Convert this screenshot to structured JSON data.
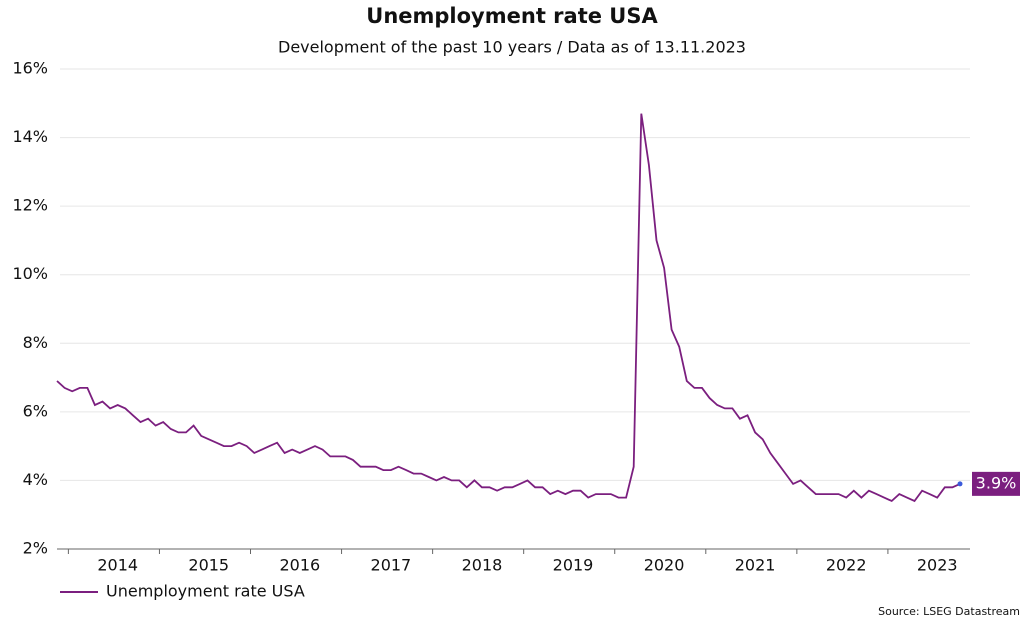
{
  "chart_data": {
    "type": "line",
    "title": "Unemployment rate USA",
    "subtitle": "Development of the past 10 years / Data as of 13.11.2023",
    "source": "Source: LSEG Datastream",
    "categories": [
      null,
      null,
      null,
      null,
      null,
      null,
      null,
      null,
      "2014",
      null,
      null,
      null,
      null,
      null,
      null,
      null,
      null,
      null,
      null,
      null,
      "2015",
      null,
      null,
      null,
      null,
      null,
      null,
      null,
      null,
      null,
      null,
      null,
      "2016",
      null,
      null,
      null,
      null,
      null,
      null,
      null,
      null,
      null,
      null,
      null,
      "2017",
      null,
      null,
      null,
      null,
      null,
      null,
      null,
      null,
      null,
      null,
      null,
      "2018",
      null,
      null,
      null,
      null,
      null,
      null,
      null,
      null,
      null,
      null,
      null,
      "2019",
      null,
      null,
      null,
      null,
      null,
      null,
      null,
      null,
      null,
      null,
      null,
      "2020",
      null,
      null,
      null,
      null,
      null,
      null,
      null,
      null,
      null,
      null,
      null,
      "2021",
      null,
      null,
      null,
      null,
      null,
      null,
      null,
      null,
      null,
      null,
      null,
      "2022",
      null,
      null,
      null,
      null,
      null,
      null,
      null,
      null,
      null,
      null,
      null,
      "2023",
      null,
      null,
      null
    ],
    "series": [
      {
        "name": "Unemployment rate USA",
        "color": "#7b1f7f",
        "values": [
          6.9,
          6.7,
          6.6,
          6.7,
          6.7,
          6.2,
          6.3,
          6.1,
          6.2,
          6.1,
          5.9,
          5.7,
          5.8,
          5.6,
          5.7,
          5.5,
          5.4,
          5.4,
          5.6,
          5.3,
          5.2,
          5.1,
          5.0,
          5.0,
          5.1,
          5.0,
          4.8,
          4.9,
          5.0,
          5.1,
          4.8,
          4.9,
          4.8,
          4.9,
          5.0,
          4.9,
          4.7,
          4.7,
          4.7,
          4.6,
          4.4,
          4.4,
          4.4,
          4.3,
          4.3,
          4.4,
          4.3,
          4.2,
          4.2,
          4.1,
          4.0,
          4.1,
          4.0,
          4.0,
          3.8,
          4.0,
          3.8,
          3.8,
          3.7,
          3.8,
          3.8,
          3.9,
          4.0,
          3.8,
          3.8,
          3.6,
          3.7,
          3.6,
          3.7,
          3.7,
          3.5,
          3.6,
          3.6,
          3.6,
          3.5,
          3.5,
          4.4,
          14.7,
          13.2,
          11.0,
          10.2,
          8.4,
          7.9,
          6.9,
          6.7,
          6.7,
          6.4,
          6.2,
          6.1,
          6.1,
          5.8,
          5.9,
          5.4,
          5.2,
          4.8,
          4.5,
          4.2,
          3.9,
          4.0,
          3.8,
          3.6,
          3.6,
          3.6,
          3.6,
          3.5,
          3.7,
          3.5,
          3.7,
          3.6,
          3.5,
          3.4,
          3.6,
          3.5,
          3.4,
          3.7,
          3.6,
          3.5,
          3.8,
          3.8,
          3.9
        ],
        "value_labels": [
          null,
          null,
          null,
          null,
          null,
          null,
          null,
          null,
          null,
          null,
          null,
          null,
          null,
          null,
          null,
          null,
          null,
          null,
          null,
          null,
          null,
          null,
          null,
          null,
          null,
          null,
          null,
          null,
          null,
          null,
          null,
          null,
          null,
          null,
          null,
          null,
          null,
          null,
          null,
          null,
          null,
          null,
          null,
          null,
          null,
          null,
          null,
          null,
          null,
          null,
          null,
          null,
          null,
          null,
          null,
          null,
          null,
          null,
          null,
          null,
          null,
          null,
          null,
          null,
          null,
          null,
          null,
          null,
          null,
          null,
          null,
          null,
          null,
          null,
          null,
          null,
          null,
          null,
          null,
          null,
          null,
          null,
          null,
          null,
          null,
          null,
          null,
          null,
          null,
          null,
          null,
          null,
          null,
          null,
          null,
          null,
          null,
          null,
          null,
          null,
          null,
          null,
          null,
          null,
          null,
          null,
          null,
          null,
          null,
          null,
          null,
          null,
          null,
          null,
          null,
          null,
          null,
          null,
          null,
          "3.9%"
        ]
      }
    ],
    "ylim": [
      2,
      16
    ],
    "yticks": [
      {
        "value": 2,
        "label": "2%"
      },
      {
        "value": 4,
        "label": "4%"
      },
      {
        "value": 6,
        "label": "6%"
      },
      {
        "value": 8,
        "label": "8%"
      },
      {
        "value": 10,
        "label": "10%"
      },
      {
        "value": 12,
        "label": "12%"
      },
      {
        "value": 14,
        "label": "14%"
      },
      {
        "value": 16,
        "label": "16%"
      }
    ],
    "grid": true,
    "legend": "bottom-left"
  }
}
